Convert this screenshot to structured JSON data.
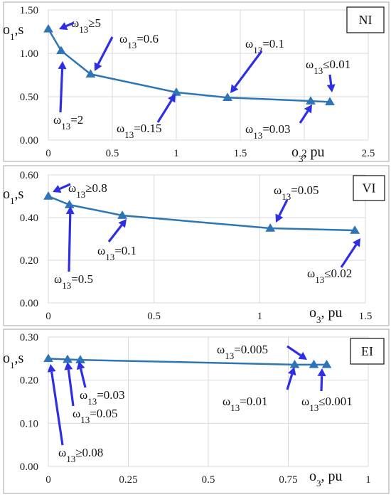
{
  "colors": {
    "curve": "#2e75b6",
    "arrow": "#2e2ee6",
    "grid": "#d9d9d9"
  },
  "chart_data": [
    {
      "type": "line",
      "tag": "NI",
      "ylabel_main": "o",
      "ylabel_sub": "1",
      "ylabel_tail": ",s",
      "xlabel_main": "o",
      "xlabel_sub": "3",
      "xlabel_tail": ", pu",
      "xlim": [
        0,
        2.5
      ],
      "ylim": [
        0,
        1.5
      ],
      "xticks": [
        "0",
        "0.5",
        "1",
        "1.5",
        "2",
        "2.5"
      ],
      "yticks": [
        "0.00",
        "0.50",
        "1.00",
        "1.50"
      ],
      "grid": true,
      "x": [
        0,
        0.1,
        0.33,
        1.0,
        1.4,
        2.05,
        2.2
      ],
      "y": [
        1.28,
        1.03,
        0.76,
        0.55,
        0.49,
        0.45,
        0.44
      ],
      "annotations": [
        {
          "pre": "ω",
          "sub": "13",
          "post": "≥5"
        },
        {
          "pre": "ω",
          "sub": "13",
          "post": "=0.6"
        },
        {
          "pre": "ω",
          "sub": "13",
          "post": "=0.1"
        },
        {
          "pre": "ω",
          "sub": "13",
          "post": "≤0.01"
        },
        {
          "pre": "ω",
          "sub": "13",
          "post": "=2"
        },
        {
          "pre": "ω",
          "sub": "13",
          "post": "=0.15"
        },
        {
          "pre": "ω",
          "sub": "13",
          "post": "=0.03"
        }
      ]
    },
    {
      "type": "line",
      "tag": "VI",
      "ylabel_main": "o",
      "ylabel_sub": "1",
      "ylabel_tail": ",s",
      "xlabel_main": "o",
      "xlabel_sub": "3",
      "xlabel_tail": ", pu",
      "xlim": [
        0,
        1.5
      ],
      "ylim": [
        0,
        0.6
      ],
      "xticks": [
        "0",
        "0.5",
        "1",
        "1.5"
      ],
      "yticks": [
        "0.00",
        "0.20",
        "0.40",
        "0.60"
      ],
      "grid": true,
      "x": [
        0,
        0.1,
        0.35,
        1.05,
        1.45
      ],
      "y": [
        0.5,
        0.46,
        0.41,
        0.35,
        0.34
      ],
      "annotations": [
        {
          "pre": "ω",
          "sub": "13",
          "post": "≥0.8"
        },
        {
          "pre": "ω",
          "sub": "13",
          "post": "=0.05"
        },
        {
          "pre": "ω",
          "sub": "13",
          "post": "=0.5"
        },
        {
          "pre": "ω",
          "sub": "13",
          "post": "=0.1"
        },
        {
          "pre": "ω",
          "sub": "13",
          "post": "≤0.02"
        }
      ]
    },
    {
      "type": "line",
      "tag": "EI",
      "ylabel_main": "o",
      "ylabel_sub": "1",
      "ylabel_tail": ",s",
      "xlabel_main": "o",
      "xlabel_sub": "3",
      "xlabel_tail": ", pu",
      "xlim": [
        0,
        1
      ],
      "ylim": [
        0,
        0.3
      ],
      "xticks": [
        "0",
        "0.25",
        "0.5",
        "0.75",
        "1"
      ],
      "yticks": [
        "0.00",
        "0.10",
        "0.20",
        "0.30"
      ],
      "grid": true,
      "x": [
        0,
        0.06,
        0.1,
        0.77,
        0.83,
        0.87
      ],
      "y": [
        0.25,
        0.248,
        0.247,
        0.236,
        0.236,
        0.236
      ],
      "annotations": [
        {
          "pre": "ω",
          "sub": "13",
          "post": "=0.005"
        },
        {
          "pre": "ω",
          "sub": "13",
          "post": "=0.03"
        },
        {
          "pre": "ω",
          "sub": "13",
          "post": "=0.05"
        },
        {
          "pre": "ω",
          "sub": "13",
          "post": "=0.01"
        },
        {
          "pre": "ω",
          "sub": "13",
          "post": "≤0.001"
        },
        {
          "pre": "ω",
          "sub": "13",
          "post": "≥0.08"
        }
      ]
    }
  ]
}
